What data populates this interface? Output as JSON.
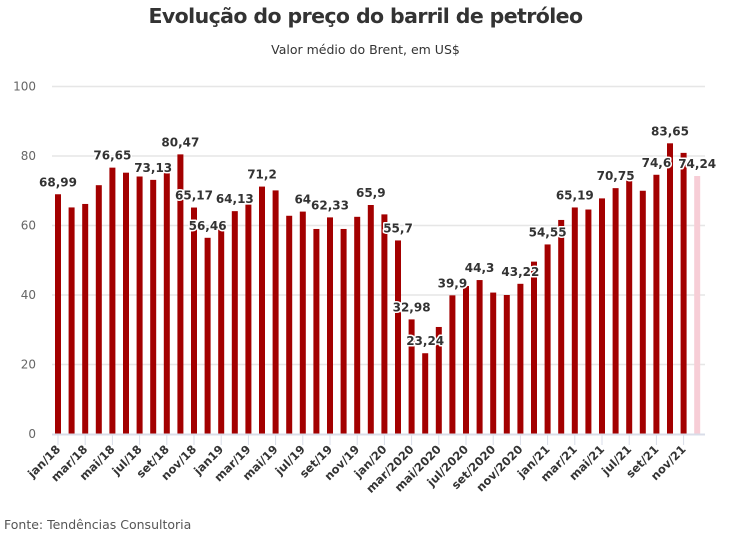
{
  "chart_data": {
    "type": "bar",
    "title": "Evolução do preço do barril de petróleo",
    "subtitle": "Valor médio do Brent, em US$",
    "source": "Fonte: Tendências Consultoria",
    "xlabel": "",
    "ylabel": "",
    "ylim": [
      0,
      100
    ],
    "yticks": [
      "0",
      "20",
      "40",
      "60",
      "80",
      "100"
    ],
    "ytick_values": [
      0,
      20,
      40,
      60,
      80,
      100
    ],
    "grid": true,
    "legend": "none",
    "colors": {
      "bar": "#a30000",
      "highlight_last": "#f7cdd6",
      "grid": "#e6e6e6",
      "axis": "#d9dde8"
    },
    "months": [
      "jan/18",
      "fev/18",
      "mar/18",
      "abr/18",
      "mai/18",
      "jun/18",
      "jul/18",
      "ago/18",
      "set/18",
      "out/18",
      "nov/18",
      "dez/18",
      "jan/19",
      "fev/19",
      "mar/19",
      "abr/19",
      "mai/19",
      "jun/19",
      "jul/19",
      "ago/19",
      "set/19",
      "out/19",
      "nov/19",
      "dez/19",
      "jan/20",
      "fev/20",
      "mar/20",
      "abr/20",
      "mai/20",
      "jun/20",
      "jul/20",
      "ago/20",
      "set/20",
      "out/20",
      "nov/20",
      "dez/20",
      "jan/21",
      "fev/21",
      "mar/21",
      "abr/21",
      "mai/21",
      "jun/21",
      "jul/21",
      "ago/21",
      "set/21",
      "out/21",
      "nov/21",
      "dez/21"
    ],
    "values": [
      68.99,
      65.2,
      66.2,
      71.6,
      76.65,
      75.2,
      74.1,
      73.13,
      75.6,
      80.47,
      65.17,
      56.46,
      59.0,
      64.13,
      66.0,
      71.2,
      70.1,
      62.8,
      64.0,
      59.0,
      62.33,
      59.0,
      62.5,
      65.9,
      63.2,
      55.7,
      32.98,
      23.24,
      30.8,
      39.9,
      42.6,
      44.3,
      40.7,
      40.0,
      43.22,
      49.6,
      54.55,
      61.6,
      65.19,
      64.6,
      67.8,
      70.75,
      73.5,
      70.0,
      74.6,
      83.65,
      80.9,
      74.24
    ],
    "highlighted_index": 47,
    "x_tick_labels": [
      {
        "index": 0,
        "label": "jan/18"
      },
      {
        "index": 2,
        "label": "mar/18"
      },
      {
        "index": 4,
        "label": "mai/18"
      },
      {
        "index": 6,
        "label": "jul/18"
      },
      {
        "index": 8,
        "label": "set/18"
      },
      {
        "index": 10,
        "label": "nov/18"
      },
      {
        "index": 12,
        "label": "jan19"
      },
      {
        "index": 14,
        "label": "mar/19"
      },
      {
        "index": 16,
        "label": "mai/19"
      },
      {
        "index": 18,
        "label": "jul/19"
      },
      {
        "index": 20,
        "label": "set/19"
      },
      {
        "index": 22,
        "label": "nov/19"
      },
      {
        "index": 24,
        "label": "jan/20"
      },
      {
        "index": 26,
        "label": "mar/2020"
      },
      {
        "index": 28,
        "label": "mai/2020"
      },
      {
        "index": 30,
        "label": "jul/2020"
      },
      {
        "index": 32,
        "label": "set/2020"
      },
      {
        "index": 34,
        "label": "nov/2020"
      },
      {
        "index": 36,
        "label": "jan/21"
      },
      {
        "index": 38,
        "label": "mar/21"
      },
      {
        "index": 40,
        "label": "mai/21"
      },
      {
        "index": 42,
        "label": "jul/21"
      },
      {
        "index": 44,
        "label": "set/21"
      },
      {
        "index": 46,
        "label": "nov/21"
      }
    ],
    "data_labels": [
      {
        "index": 0,
        "label": "68,99"
      },
      {
        "index": 4,
        "label": "76,65"
      },
      {
        "index": 7,
        "label": "73,13"
      },
      {
        "index": 9,
        "label": "80,47"
      },
      {
        "index": 10,
        "label": "65,17"
      },
      {
        "index": 11,
        "label": "56,46"
      },
      {
        "index": 13,
        "label": "64,13"
      },
      {
        "index": 15,
        "label": "71,2"
      },
      {
        "index": 18,
        "label": "64"
      },
      {
        "index": 20,
        "label": "62,33"
      },
      {
        "index": 23,
        "label": "65,9"
      },
      {
        "index": 25,
        "label": "55,7"
      },
      {
        "index": 26,
        "label": "32,98"
      },
      {
        "index": 27,
        "label": "23,24"
      },
      {
        "index": 29,
        "label": "39,9"
      },
      {
        "index": 31,
        "label": "44,3"
      },
      {
        "index": 34,
        "label": "43,22"
      },
      {
        "index": 36,
        "label": "54,55"
      },
      {
        "index": 38,
        "label": "65,19"
      },
      {
        "index": 41,
        "label": "70,75"
      },
      {
        "index": 44,
        "label": "74,6"
      },
      {
        "index": 45,
        "label": "83,65"
      },
      {
        "index": 47,
        "label": "74,24"
      }
    ]
  }
}
